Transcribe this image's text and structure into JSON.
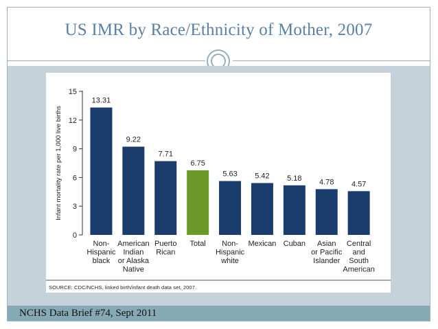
{
  "slide": {
    "title": "US IMR by Race/Ethnicity of Mother, 2007",
    "footer": "NCHS Data Brief #74, Sept 2011"
  },
  "colors": {
    "bar_default": "#1b3d6e",
    "bar_highlight": "#6b9a2a",
    "title": "#5b80a5",
    "content_band": "#c6d2da",
    "footer_band": "#85a9b5"
  },
  "chart_data": {
    "type": "bar",
    "title": "",
    "xlabel": "",
    "ylabel": "Infant mortality rate per 1,000 live births",
    "ylim": [
      0,
      15
    ],
    "yticks": [
      0,
      3,
      6,
      9,
      12,
      15
    ],
    "grid": false,
    "categories": [
      [
        "Non-",
        "Hispanic",
        "black"
      ],
      [
        "American",
        "Indian",
        "or Alaska",
        "Native"
      ],
      [
        "Puerto",
        "Rican"
      ],
      [
        "Total"
      ],
      [
        "Non-",
        "Hispanic",
        "white"
      ],
      [
        "Mexican"
      ],
      [
        "Cuban"
      ],
      [
        "Asian",
        "or Pacific",
        "Islander"
      ],
      [
        "Central",
        "and",
        "South",
        "American"
      ]
    ],
    "values": [
      13.31,
      9.22,
      7.71,
      6.75,
      5.63,
      5.42,
      5.18,
      4.78,
      4.57
    ],
    "value_labels": [
      "13.31",
      "9.22",
      "7.71",
      "6.75",
      "5.63",
      "5.42",
      "5.18",
      "4.78",
      "4.57"
    ],
    "highlight_category": "Total",
    "source": "SOURCE: CDC/NCHS, linked birth/infant death data set, 2007."
  }
}
